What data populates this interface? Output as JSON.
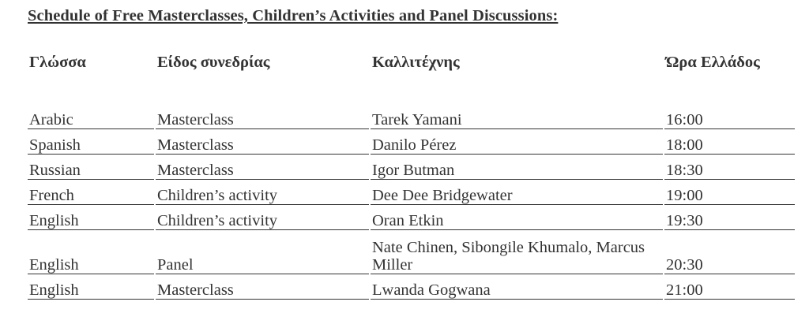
{
  "title": "Schedule of Free Masterclasses, Children’s Activities and Panel Discussions:",
  "table": {
    "headers": [
      "Γλώσσα",
      "Είδος συνεδρίας",
      "Καλλιτέχνης",
      "Ώρα Ελλάδος"
    ],
    "rows": [
      [
        "Arabic",
        "Masterclass",
        "Tarek Yamani",
        "16:00"
      ],
      [
        "Spanish",
        "Masterclass",
        "Danilo Pérez",
        "18:00"
      ],
      [
        "Russian",
        "Masterclass",
        "Igor Butman",
        "18:30"
      ],
      [
        "French",
        "Children’s activity",
        "Dee Dee Bridgewater",
        "19:00"
      ],
      [
        "English",
        "Children’s activity",
        "Oran Etkin",
        "19:30"
      ],
      [
        "English",
        "Panel",
        "Nate Chinen, Sibongile Khumalo, Marcus Miller",
        "20:30"
      ],
      [
        "English",
        "Masterclass",
        "Lwanda Gogwana",
        "21:00"
      ]
    ]
  }
}
